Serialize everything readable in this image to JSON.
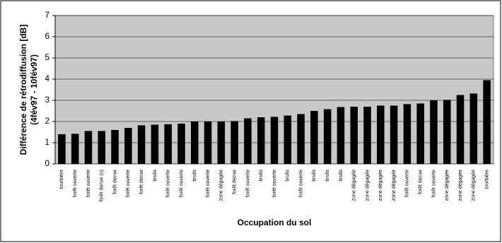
{
  "chart_data": {
    "type": "bar",
    "y_label": [
      "Différence de rétrodiffusion [dB]",
      "(4fév97 - 10fév97)"
    ],
    "x_label": "Occupation du sol",
    "categories": [
      "tourbière",
      "forêt ouverte",
      "forêt ouverte",
      "forêt dense (o)",
      "forêt dense",
      "forêt ouverte",
      "forêt dense",
      "brulis",
      "forêt ouverte",
      "forêt ouverte",
      "brulis",
      "forêt ouverte",
      "zone dégagée",
      "forêt dense",
      "forêt ouverte",
      "brulis",
      "forêt ouverte",
      "brulis",
      "forêt ouverte",
      "brulis",
      "brulis",
      "brulis",
      "zone dégagée",
      "zone dégagée",
      "zone dégagée",
      "zone dégagée",
      "forêt ouverte",
      "forêt dense",
      "forêt ouverte",
      "zone dégagée",
      "zone dégagée",
      "zone dégagée",
      "tourbière"
    ],
    "values": [
      1.4,
      1.42,
      1.55,
      1.55,
      1.6,
      1.7,
      1.82,
      1.85,
      1.87,
      1.9,
      2.0,
      2.0,
      2.0,
      2.02,
      2.15,
      2.2,
      2.22,
      2.28,
      2.35,
      2.5,
      2.58,
      2.68,
      2.7,
      2.7,
      2.75,
      2.75,
      2.82,
      2.85,
      3.0,
      3.02,
      3.25,
      3.32,
      3.95
    ],
    "color": "#000000",
    "ylim": [
      0,
      7
    ],
    "yticks": [
      0,
      1,
      2,
      3,
      4,
      5,
      6,
      7
    ],
    "grid": true
  }
}
